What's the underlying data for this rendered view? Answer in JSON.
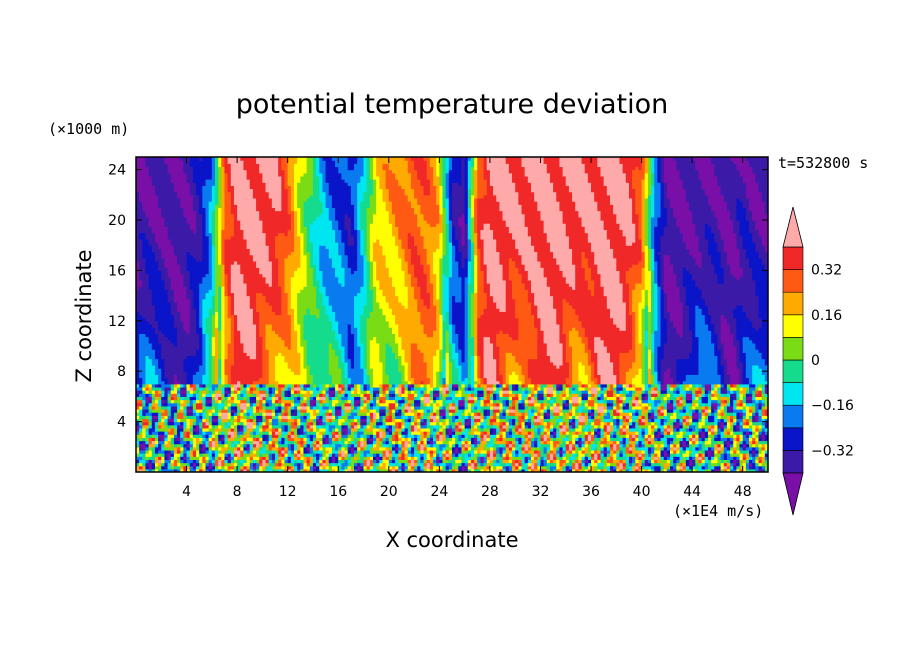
{
  "chart_data": {
    "type": "heatmap",
    "title": "potential temperature deviation",
    "xlabel": "X coordinate",
    "ylabel": "Z coordinate",
    "x_unit": "(×1E4 m/s)",
    "y_unit": "(×1000 m)",
    "time_label": "t=532800 s",
    "xlim": [
      0,
      50
    ],
    "ylim": [
      0,
      25
    ],
    "x_ticks": [
      4,
      8,
      12,
      16,
      20,
      24,
      28,
      32,
      36,
      40,
      44,
      48
    ],
    "y_ticks": [
      4,
      8,
      12,
      16,
      20,
      24
    ],
    "x_tick_labels": [
      "4",
      "8",
      "12",
      "16",
      "20",
      "24",
      "28",
      "32",
      "36",
      "40",
      "44",
      "48"
    ],
    "y_tick_labels": [
      "4",
      "8",
      "12",
      "16",
      "20",
      "24"
    ],
    "colorbar": {
      "levels": [
        -0.4,
        -0.32,
        -0.24,
        -0.16,
        -0.08,
        0,
        0.08,
        0.16,
        0.24,
        0.32,
        0.4
      ],
      "tick_values": [
        0.32,
        0.16,
        0,
        -0.16,
        -0.32
      ],
      "tick_labels": [
        "0.32",
        "0.16",
        "0",
        "−0.16",
        "−0.32"
      ],
      "colors": [
        "#7a0fa8",
        "#3c1aa8",
        "#0a14c8",
        "#0a7af0",
        "#00e6f0",
        "#14dc8c",
        "#7adc14",
        "#ffff00",
        "#ffaa00",
        "#ff5a14",
        "#f02828",
        "#ffaaaa"
      ],
      "extend": "both"
    },
    "upper_layer_profile": {
      "description_values_x": [
        0,
        2,
        4,
        5,
        6,
        7,
        8,
        9,
        10,
        11,
        12,
        13,
        14,
        15,
        16,
        17,
        18,
        19,
        20,
        21,
        22,
        23,
        24,
        25,
        26,
        27,
        28,
        29,
        30,
        31,
        32,
        33,
        34,
        35,
        36,
        37,
        38,
        39,
        40,
        41,
        42,
        43,
        44,
        45,
        46,
        47,
        48,
        49,
        50
      ],
      "theta": [
        -0.4,
        -0.4,
        -0.38,
        -0.35,
        -0.2,
        0.3,
        0.42,
        0.42,
        0.42,
        0.42,
        0.3,
        0.1,
        -0.05,
        -0.2,
        -0.25,
        -0.3,
        -0.1,
        0.15,
        0.2,
        0.26,
        0.3,
        0.28,
        0.18,
        -0.3,
        -0.4,
        0.3,
        0.42,
        0.42,
        0.42,
        0.42,
        0.42,
        0.42,
        0.42,
        0.42,
        0.42,
        0.42,
        0.42,
        0.42,
        0.3,
        -0.2,
        -0.4,
        -0.4,
        -0.4,
        -0.4,
        -0.38,
        -0.4,
        -0.35,
        -0.4,
        -0.4
      ]
    },
    "interface_height": 7
  }
}
